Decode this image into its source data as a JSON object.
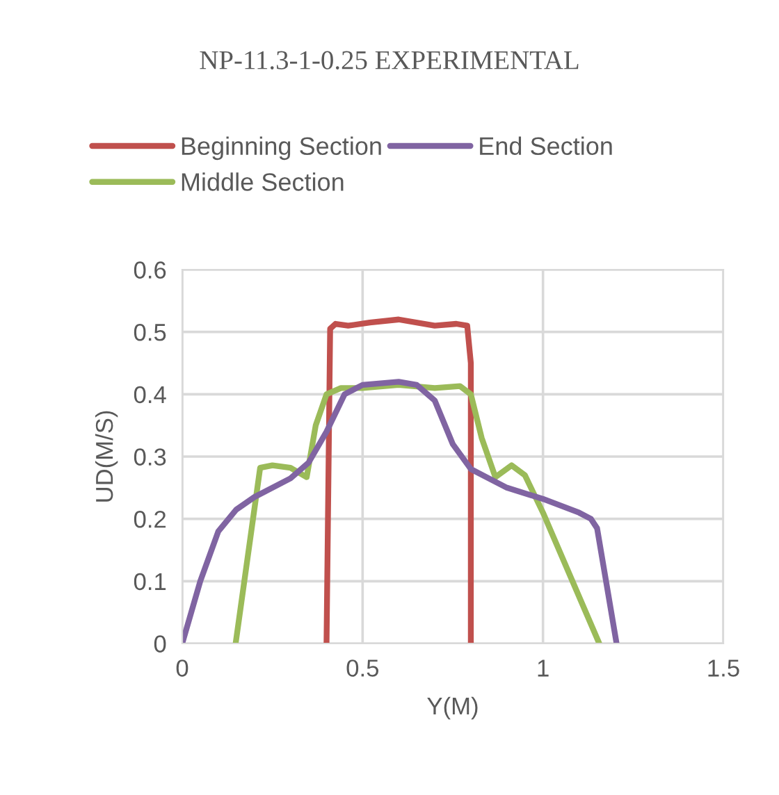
{
  "chart_data": {
    "type": "line",
    "title": "NP-11.3-1-0.25 EXPERIMENTAL",
    "xlabel": "Y(M)",
    "ylabel": "UD(M/S)",
    "xlim": [
      0,
      1.5
    ],
    "xticks": [
      0,
      {
        "value": 0.5,
        "label": "0.5"
      },
      1,
      {
        "value": 1.5,
        "label": "1.5"
      }
    ],
    "ylim": [
      0,
      0.6
    ],
    "yticks": [
      0,
      0.1,
      0.2,
      0.3,
      0.4,
      0.5,
      0.6
    ],
    "grid": true,
    "legend": "top",
    "line_style": "solid",
    "marker": "none",
    "series": [
      {
        "name": "Beginning Section",
        "color": "#c0504d",
        "x": [
          0.4,
          0.41,
          0.425,
          0.46,
          0.52,
          0.6,
          0.7,
          0.76,
          0.79,
          0.8,
          0.8
        ],
        "values": [
          0,
          0.505,
          0.513,
          0.51,
          0.515,
          0.52,
          0.51,
          0.513,
          0.51,
          0.45,
          0
        ]
      },
      {
        "name": "Middle Section",
        "color": "#9bbb59",
        "x": [
          0.148,
          0.216,
          0.25,
          0.3,
          0.345,
          0.37,
          0.4,
          0.44,
          0.5,
          0.6,
          0.7,
          0.77,
          0.8,
          0.83,
          0.868,
          0.913,
          0.95,
          1.0,
          1.156
        ],
        "values": [
          0,
          0.282,
          0.286,
          0.282,
          0.267,
          0.35,
          0.4,
          0.41,
          0.41,
          0.415,
          0.41,
          0.413,
          0.4,
          0.33,
          0.267,
          0.286,
          0.27,
          0.21,
          0
        ]
      },
      {
        "name": "End Section",
        "color": "#8064a2",
        "x": [
          0,
          0.05,
          0.1,
          0.15,
          0.2,
          0.3,
          0.35,
          0.4,
          0.45,
          0.5,
          0.6,
          0.65,
          0.7,
          0.75,
          0.8,
          0.9,
          1.0,
          1.1,
          1.133,
          1.15,
          1.204
        ],
        "values": [
          0,
          0.1,
          0.18,
          0.215,
          0.235,
          0.265,
          0.29,
          0.34,
          0.4,
          0.415,
          0.42,
          0.415,
          0.39,
          0.32,
          0.28,
          0.25,
          0.232,
          0.21,
          0.2,
          0.185,
          0
        ]
      }
    ]
  }
}
